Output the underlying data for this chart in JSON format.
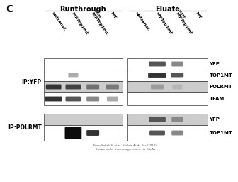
{
  "title_letter": "C",
  "section_labels": [
    "Runthrough",
    "Eluate"
  ],
  "col_labels_rt": [
    "untransf.",
    "MY-Top1mt",
    "MY-Top1mt",
    "MY"
  ],
  "col_labels_el": [
    "untransf.",
    "MY-Top1mt",
    "MY-Top1mt",
    "MY"
  ],
  "col_supers_rt": [
    "",
    "",
    "Y559F",
    ""
  ],
  "col_supers_el": [
    "",
    "",
    "Y559F",
    ""
  ],
  "ip_labels": [
    "IP:YFP",
    "IP:POLRMT"
  ],
  "band_labels_yfp": [
    "YFP",
    "TOP1MT",
    "POLRMT",
    "TFAM"
  ],
  "band_labels_polrmt": [
    "YFP",
    "TOP1MT"
  ],
  "citation": "From Sobek S. et al. Nucleic Acids Res (2013).\nShown under license agreement via CiteAb",
  "bg_gray": "#cccccc",
  "bg_white": "#ffffff",
  "ec": "#333333",
  "band_black": "#0d0d0d",
  "band_dark": "#333333",
  "band_mid": "#555555",
  "band_light": "#888888",
  "band_vlight": "#aaaaaa"
}
